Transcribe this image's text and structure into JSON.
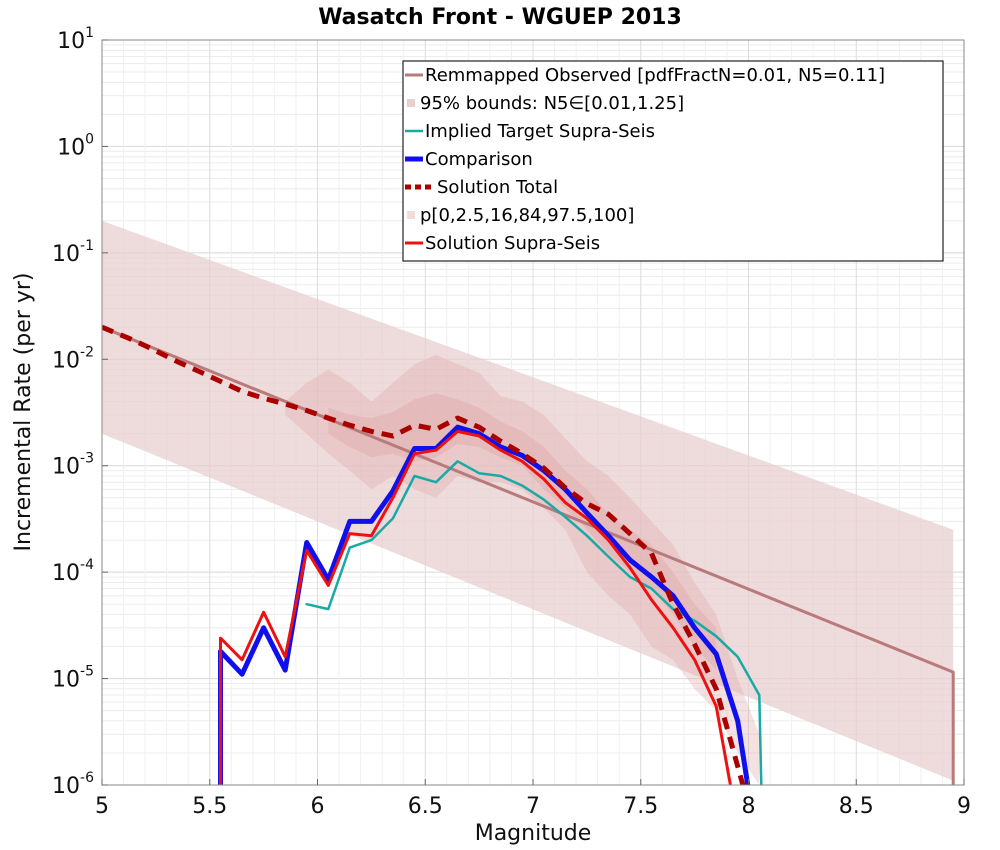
{
  "chart_data": {
    "type": "line",
    "title": "Wasatch Front - WGUEP 2013",
    "xlabel": "Magnitude",
    "ylabel": "Incremental Rate (per yr)",
    "xlim": [
      5,
      9
    ],
    "ylim": [
      1e-06,
      10
    ],
    "yscale": "log",
    "grid": true,
    "legend_placement": "top-right",
    "x_ticks": [
      5,
      5.5,
      6,
      6.5,
      7,
      7.5,
      8,
      8.5,
      9
    ],
    "x_tick_labels": [
      "5",
      "5.5",
      "6",
      "6.5",
      "7",
      "7.5",
      "8",
      "8.5",
      "9"
    ],
    "y_ticks": [
      {
        "value": 1e-06,
        "base": "10",
        "exp": "-6"
      },
      {
        "value": 1e-05,
        "base": "10",
        "exp": "-5"
      },
      {
        "value": 0.0001,
        "base": "10",
        "exp": "-4"
      },
      {
        "value": 0.001,
        "base": "10",
        "exp": "-3"
      },
      {
        "value": 0.01,
        "base": "10",
        "exp": "-2"
      },
      {
        "value": 0.1,
        "base": "10",
        "exp": "-1"
      },
      {
        "value": 1,
        "base": "10",
        "exp": "0"
      },
      {
        "value": 10,
        "base": "10",
        "exp": "1"
      }
    ],
    "bands": [
      {
        "legend": "95% bounds: N5∈[0.01,1.25]",
        "color": "#e8cfcf",
        "x": [
          5.0,
          8.95
        ],
        "lower": [
          0.002,
          1.1e-06
        ],
        "upper": [
          0.2,
          0.00025
        ]
      },
      {
        "legend": "p[0,2.5,16,84,97.5,100]",
        "color": "#dfa9a9",
        "opacity": 0.35,
        "x": [
          5.85,
          5.95,
          6.05,
          6.15,
          6.25,
          6.35,
          6.45,
          6.55,
          6.65,
          6.75,
          6.85,
          6.95,
          7.05,
          7.15,
          7.25,
          7.35,
          7.45,
          7.55,
          7.65,
          7.75,
          7.85,
          7.95,
          8.05
        ],
        "lower": [
          0.003,
          0.002,
          0.0013,
          0.0009,
          0.0006,
          0.0008,
          0.0006,
          0.0005,
          0.0008,
          0.0007,
          0.0007,
          0.0006,
          0.0004,
          0.00025,
          0.0001,
          6e-05,
          4e-05,
          2e-05,
          1.5e-05,
          8e-06,
          5e-06,
          2e-06,
          1e-06
        ],
        "upper": [
          0.004,
          0.006,
          0.008,
          0.006,
          0.004,
          0.006,
          0.009,
          0.011,
          0.009,
          0.0075,
          0.0045,
          0.004,
          0.003,
          0.0018,
          0.0011,
          0.0008,
          0.0005,
          0.0003,
          0.00018,
          8e-05,
          4e-05,
          1e-05,
          3e-06
        ]
      },
      {
        "legend": "",
        "color": "#dfa9a9",
        "opacity": 0.45,
        "x": [
          6.05,
          6.15,
          6.25,
          6.35,
          6.45,
          6.55,
          6.65,
          6.75,
          6.85,
          6.95,
          7.05,
          7.15,
          7.25,
          7.35,
          7.45,
          7.55,
          7.65,
          7.75,
          7.85
        ],
        "lower": [
          0.002,
          0.0015,
          0.0012,
          0.0013,
          0.0011,
          0.0012,
          0.0016,
          0.0015,
          0.0012,
          0.001,
          0.0006,
          0.0004,
          0.00025,
          0.00015,
          0.0001,
          7e-05,
          4e-05,
          2e-05,
          1.2e-05
        ],
        "upper": [
          0.0035,
          0.003,
          0.0028,
          0.0032,
          0.0042,
          0.0048,
          0.0042,
          0.0035,
          0.0026,
          0.0021,
          0.0015,
          0.0009,
          0.0006,
          0.00035,
          0.00025,
          0.00018,
          0.0001,
          5e-05,
          3e-05
        ]
      }
    ],
    "series": [
      {
        "name": "Remmapped Observed [pdfFractN=0.01, N5=0.11]",
        "color": "#b87a7a",
        "width": 3,
        "dash": "",
        "x": [
          5.0,
          8.95,
          8.95
        ],
        "y": [
          0.02,
          1.15e-05,
          9.5e-07
        ]
      },
      {
        "name": "Implied Target Supra-Seis",
        "color": "#1aaaa6",
        "width": 2.5,
        "dash": "",
        "x": [
          5.95,
          6.05,
          6.15,
          6.25,
          6.35,
          6.45,
          6.55,
          6.65,
          6.75,
          6.85,
          6.95,
          7.05,
          7.15,
          7.25,
          7.35,
          7.45,
          7.55,
          7.65,
          7.75,
          7.85,
          7.95,
          8.05,
          8.06
        ],
        "y": [
          5e-05,
          4.5e-05,
          0.00017,
          0.0002,
          0.00032,
          0.0008,
          0.0007,
          0.0011,
          0.00085,
          0.0008,
          0.00065,
          0.00048,
          0.00033,
          0.00022,
          0.00014,
          9e-05,
          7e-05,
          4.5e-05,
          3.5e-05,
          2.5e-05,
          1.6e-05,
          7e-06,
          9e-07
        ]
      },
      {
        "name": "Comparison",
        "color": "#1010ee",
        "width": 5,
        "dash": "",
        "x": [
          5.55,
          5.55,
          5.65,
          5.75,
          5.85,
          5.95,
          6.05,
          6.15,
          6.25,
          6.35,
          6.45,
          6.55,
          6.65,
          6.75,
          6.85,
          6.95,
          7.05,
          7.15,
          7.25,
          7.35,
          7.45,
          7.55,
          7.65,
          7.75,
          7.85,
          7.95,
          8.0
        ],
        "y": [
          9e-07,
          1.8e-05,
          1.1e-05,
          3e-05,
          1.2e-05,
          0.00019,
          8.5e-05,
          0.0003,
          0.0003,
          0.00058,
          0.00145,
          0.00145,
          0.0023,
          0.002,
          0.0015,
          0.00125,
          0.0009,
          0.0006,
          0.00036,
          0.00022,
          0.00013,
          9e-05,
          6e-05,
          3e-05,
          1.7e-05,
          4e-06,
          9e-07
        ]
      },
      {
        "name": "Solution Total",
        "color": "#aa0000",
        "width": 5,
        "dash": "12,8",
        "x": [
          5.0,
          5.15,
          5.25,
          5.35,
          5.45,
          5.55,
          5.65,
          5.75,
          5.85,
          5.95,
          6.05,
          6.15,
          6.25,
          6.35,
          6.45,
          6.55,
          6.65,
          6.75,
          6.85,
          6.95,
          7.05,
          7.15,
          7.25,
          7.35,
          7.45,
          7.55,
          7.65,
          7.75,
          7.85,
          7.95,
          7.98
        ],
        "y": [
          0.02,
          0.015,
          0.012,
          0.0095,
          0.0077,
          0.0062,
          0.005,
          0.0043,
          0.0038,
          0.0033,
          0.0028,
          0.0024,
          0.0021,
          0.0019,
          0.0024,
          0.0022,
          0.0028,
          0.0023,
          0.0017,
          0.0013,
          0.00095,
          0.00062,
          0.00044,
          0.00035,
          0.00023,
          0.00015,
          5e-05,
          2.1e-05,
          8e-06,
          1.5e-06,
          9e-07
        ]
      },
      {
        "name": "Solution Supra-Seis",
        "color": "#ee1111",
        "width": 3,
        "dash": "",
        "x": [
          5.55,
          5.55,
          5.65,
          5.75,
          5.85,
          5.95,
          6.05,
          6.15,
          6.25,
          6.35,
          6.45,
          6.55,
          6.65,
          6.75,
          6.85,
          6.95,
          7.05,
          7.15,
          7.25,
          7.35,
          7.45,
          7.55,
          7.65,
          7.75,
          7.85,
          7.92
        ],
        "y": [
          9e-07,
          2.4e-05,
          1.5e-05,
          4.2e-05,
          1.6e-05,
          0.00016,
          7.5e-05,
          0.00023,
          0.00022,
          0.0005,
          0.0013,
          0.0014,
          0.0021,
          0.0019,
          0.0014,
          0.0011,
          0.00075,
          0.00045,
          0.00032,
          0.0002,
          0.00011,
          5.5e-05,
          3e-05,
          1.5e-05,
          5.5e-06,
          9e-07
        ]
      }
    ],
    "legend": [
      {
        "label": "Remmapped Observed [pdfFractN=0.01, N5=0.11]",
        "kind": "line",
        "color": "#b87a7a",
        "width": 3,
        "dash": ""
      },
      {
        "label": "95% bounds: N5∈[0.01,1.25]",
        "kind": "patch",
        "color": "#e8cfcf"
      },
      {
        "label": "Implied Target Supra-Seis",
        "kind": "line",
        "color": "#1aaaa6",
        "width": 2.5,
        "dash": ""
      },
      {
        "label": "Comparison",
        "kind": "line",
        "color": "#1010ee",
        "width": 5,
        "dash": ""
      },
      {
        "label": "Solution Total",
        "kind": "line",
        "color": "#aa0000",
        "width": 5,
        "dash": "12,8"
      },
      {
        "label": "p[0,2.5,16,84,97.5,100]",
        "kind": "patch",
        "color": "#f0dcdc"
      },
      {
        "label": "Solution Supra-Seis",
        "kind": "line",
        "color": "#ee1111",
        "width": 3,
        "dash": ""
      }
    ]
  }
}
